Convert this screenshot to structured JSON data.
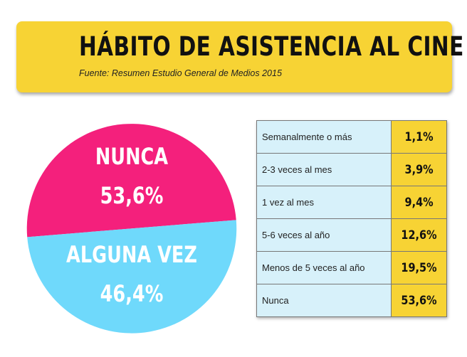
{
  "header": {
    "title": "HÁBITO DE ASISTENCIA AL CINE",
    "source": "Fuente: Resumen Estudio General de Medios 2015"
  },
  "colors": {
    "banner": "#f7d334",
    "nunca": "#f4207c",
    "alguna_vez": "#6fd9fb",
    "table_label_bg": "#d7f1fa",
    "table_value_bg": "#f7d334"
  },
  "chart_data": [
    {
      "type": "pie",
      "title": "",
      "series": [
        {
          "name": "NUNCA",
          "value": 53.6,
          "label": "53,6%"
        },
        {
          "name": "ALGUNA VEZ",
          "value": 46.4,
          "label": "46,4%"
        }
      ]
    },
    {
      "type": "table",
      "rows": [
        {
          "label": "Semanalmente o más",
          "value": 1.1,
          "display": "1,1%"
        },
        {
          "label": "2-3 veces al mes",
          "value": 3.9,
          "display": "3,9%"
        },
        {
          "label": "1 vez al mes",
          "value": 9.4,
          "display": "9,4%"
        },
        {
          "label": "5-6 veces al año",
          "value": 12.6,
          "display": "12,6%"
        },
        {
          "label": "Menos de 5 veces al año",
          "value": 19.5,
          "display": "19,5%"
        },
        {
          "label": "Nunca",
          "value": 53.6,
          "display": "53,6%"
        }
      ]
    }
  ]
}
